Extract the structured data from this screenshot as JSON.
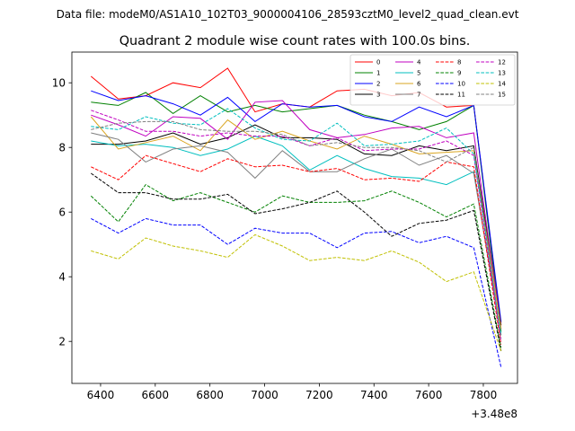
{
  "suptitle": "Data file: modeM0/AS1A10_102T03_9000004106_28593cztM0_level2_quad_clean.evt",
  "chart_data": {
    "type": "line",
    "title": "Quadrant 2 module wise count rates with 100.0s bins.",
    "xlabel": "",
    "ylabel": "",
    "x_offset_label": "+3.48e8",
    "xlim": [
      6295,
      7925
    ],
    "ylim": [
      0.7,
      10.95
    ],
    "xticks": [
      6400,
      6600,
      6800,
      7000,
      7200,
      7400,
      7600,
      7800
    ],
    "yticks": [
      2,
      4,
      6,
      8,
      10
    ],
    "legend_loc": "top-right",
    "x": [
      6365,
      6465,
      6565,
      6665,
      6765,
      6865,
      6965,
      7065,
      7165,
      7265,
      7365,
      7465,
      7565,
      7665,
      7765,
      7865
    ],
    "series": [
      {
        "name": "0",
        "color": "#ff0000",
        "dash": "solid",
        "values": [
          10.2,
          9.5,
          9.6,
          10.0,
          9.85,
          10.45,
          9.1,
          9.35,
          9.25,
          9.75,
          9.8,
          9.6,
          9.7,
          9.25,
          9.3,
          2.5
        ]
      },
      {
        "name": "1",
        "color": "#008000",
        "dash": "solid",
        "values": [
          9.4,
          9.3,
          9.7,
          9.05,
          9.6,
          9.1,
          9.3,
          9.1,
          9.2,
          9.3,
          9.0,
          8.8,
          8.55,
          8.8,
          9.3,
          2.3
        ]
      },
      {
        "name": "2",
        "color": "#0000ff",
        "dash": "solid",
        "values": [
          9.75,
          9.45,
          9.6,
          9.35,
          9.0,
          9.55,
          8.8,
          9.35,
          9.25,
          9.3,
          8.95,
          8.8,
          9.25,
          8.95,
          9.3,
          2.6
        ]
      },
      {
        "name": "3",
        "color": "#000000",
        "dash": "solid",
        "values": [
          8.1,
          8.1,
          8.2,
          8.45,
          8.1,
          8.3,
          8.7,
          8.3,
          8.3,
          8.25,
          7.8,
          7.75,
          8.05,
          7.9,
          8.05,
          2.5
        ]
      },
      {
        "name": "4",
        "color": "#c000c0",
        "dash": "solid",
        "values": [
          9.0,
          8.7,
          8.35,
          8.95,
          8.9,
          8.25,
          9.4,
          9.45,
          8.55,
          8.3,
          8.4,
          8.6,
          8.65,
          8.3,
          8.45,
          2.4
        ]
      },
      {
        "name": "5",
        "color": "#00bfbf",
        "dash": "solid",
        "values": [
          8.2,
          8.05,
          8.1,
          8.0,
          7.75,
          7.95,
          8.35,
          8.05,
          7.3,
          7.75,
          7.35,
          7.1,
          7.05,
          6.85,
          7.25,
          2.2
        ]
      },
      {
        "name": "6",
        "color": "#daa520",
        "dash": "solid",
        "values": [
          8.95,
          7.95,
          8.15,
          8.35,
          7.9,
          8.85,
          8.25,
          8.5,
          8.2,
          7.95,
          8.35,
          8.1,
          7.8,
          7.85,
          7.9,
          2.4
        ]
      },
      {
        "name": "7",
        "color": "#808080",
        "dash": "solid",
        "values": [
          8.45,
          8.25,
          7.55,
          7.95,
          8.05,
          7.85,
          7.05,
          7.9,
          7.25,
          7.25,
          7.65,
          7.95,
          7.45,
          7.75,
          7.2,
          2.2
        ]
      },
      {
        "name": "8",
        "color": "#ff0000",
        "dash": "dashed",
        "values": [
          7.4,
          7.0,
          7.75,
          7.5,
          7.25,
          7.65,
          7.4,
          7.45,
          7.25,
          7.35,
          7.0,
          7.05,
          6.95,
          7.55,
          7.4,
          1.9
        ]
      },
      {
        "name": "9",
        "color": "#008000",
        "dash": "dashed",
        "values": [
          6.5,
          5.7,
          6.85,
          6.35,
          6.6,
          6.3,
          6.0,
          6.5,
          6.3,
          6.3,
          6.35,
          6.65,
          6.3,
          5.85,
          6.25,
          1.8
        ]
      },
      {
        "name": "10",
        "color": "#0000ff",
        "dash": "dashed",
        "values": [
          5.8,
          5.35,
          5.8,
          5.6,
          5.6,
          5.0,
          5.5,
          5.35,
          5.35,
          4.9,
          5.35,
          5.4,
          5.05,
          5.25,
          4.9,
          1.2
        ]
      },
      {
        "name": "11",
        "color": "#000000",
        "dash": "dashed",
        "values": [
          7.2,
          6.6,
          6.6,
          6.4,
          6.4,
          6.55,
          5.95,
          6.1,
          6.3,
          6.65,
          6.0,
          5.25,
          5.65,
          5.75,
          6.05,
          1.7
        ]
      },
      {
        "name": "12",
        "color": "#c000c0",
        "dash": "dashed",
        "values": [
          9.15,
          8.85,
          8.5,
          8.5,
          8.35,
          8.45,
          8.35,
          8.35,
          8.05,
          8.3,
          7.9,
          7.95,
          7.95,
          8.2,
          7.75,
          2.0
        ]
      },
      {
        "name": "13",
        "color": "#00bfbf",
        "dash": "dashed",
        "values": [
          8.65,
          8.55,
          8.95,
          8.75,
          8.7,
          9.2,
          8.6,
          8.25,
          8.2,
          8.75,
          8.05,
          8.1,
          8.2,
          8.6,
          7.8,
          2.2
        ]
      },
      {
        "name": "14",
        "color": "#c0c000",
        "dash": "dashed",
        "values": [
          4.8,
          4.55,
          5.2,
          4.95,
          4.8,
          4.6,
          5.3,
          4.95,
          4.5,
          4.6,
          4.5,
          4.8,
          4.45,
          3.85,
          4.15,
          1.7
        ]
      },
      {
        "name": "15",
        "color": "#808080",
        "dash": "dashed",
        "values": [
          8.55,
          8.75,
          8.8,
          8.8,
          8.55,
          8.5,
          8.5,
          8.4,
          8.05,
          8.15,
          8.0,
          8.0,
          7.9,
          7.55,
          8.0,
          2.1
        ]
      }
    ]
  }
}
